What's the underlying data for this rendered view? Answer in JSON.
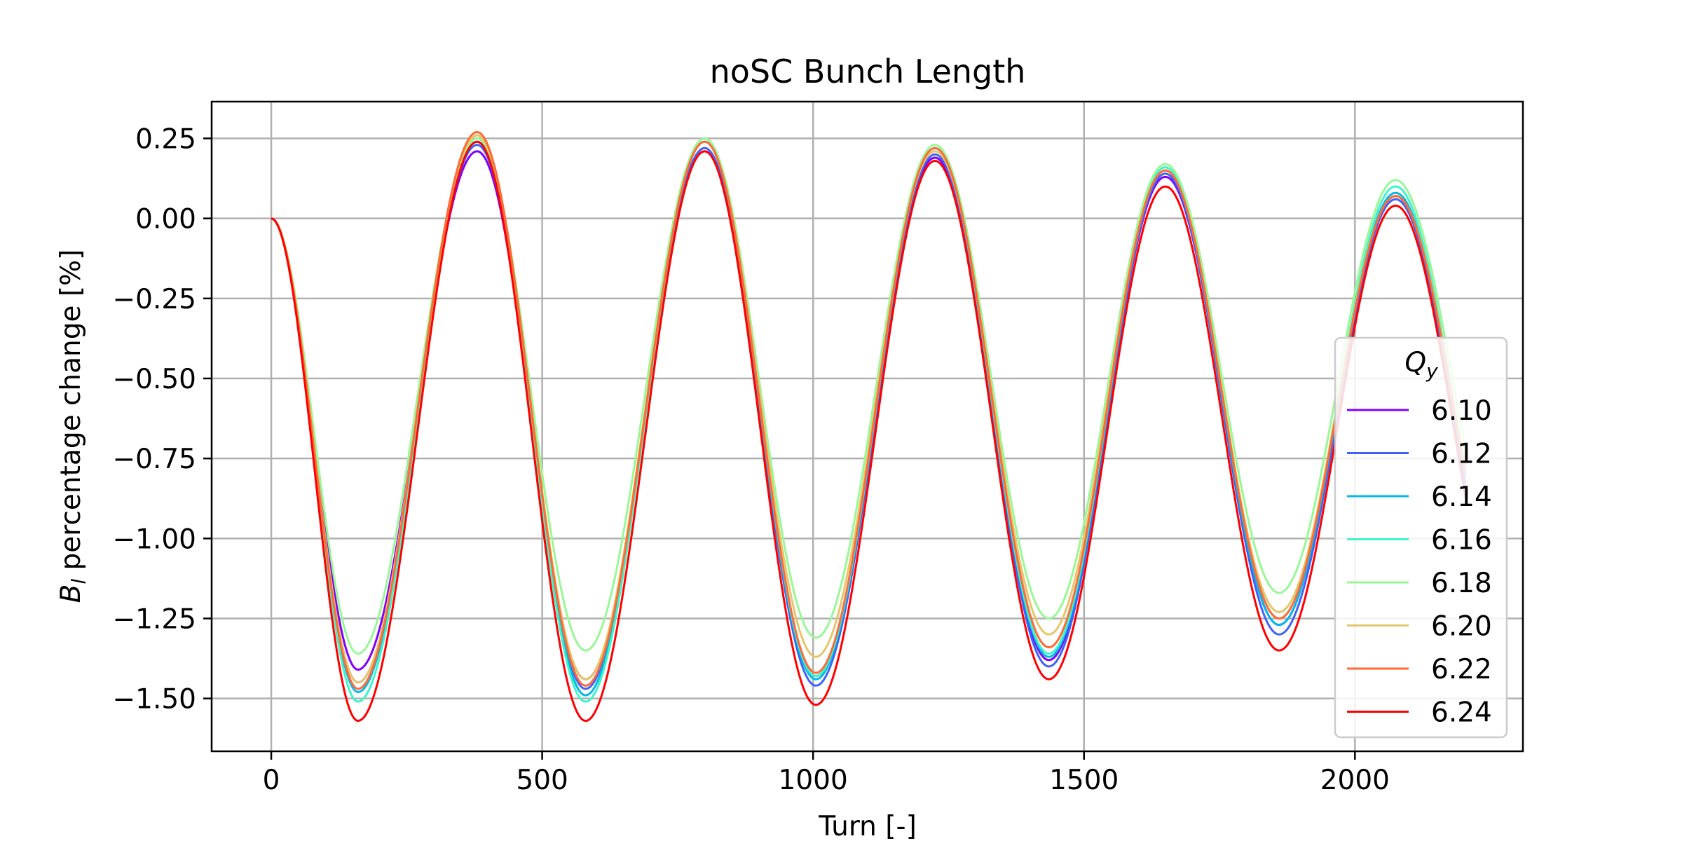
{
  "chart_data": {
    "type": "line",
    "title": "noSC Bunch Length",
    "xlabel": "Turn [-]",
    "ylabel": {
      "symbol": "B",
      "subscript": "l",
      "rest": " percentage change [%]"
    },
    "xlim": [
      -110,
      2310
    ],
    "ylim": [
      -1.665,
      0.365
    ],
    "x_ticks": [
      0,
      500,
      1000,
      1500,
      2000
    ],
    "x_tick_labels": [
      "0",
      "500",
      "1000",
      "1500",
      "2000"
    ],
    "y_ticks": [
      0.25,
      0.0,
      -0.25,
      -0.5,
      -0.75,
      -1.0,
      -1.25,
      -1.5
    ],
    "y_tick_labels": [
      "0.25",
      "0.00",
      "−0.25",
      "−0.50",
      "−0.75",
      "−1.00",
      "−1.25",
      "−1.50"
    ],
    "grid": true,
    "legend": {
      "title_symbol": "Q",
      "title_subscript": "y",
      "placement": "right"
    },
    "x_peaks": [
      0,
      160,
      380,
      580,
      800,
      1005,
      1225,
      1435,
      1650,
      1860,
      2075
    ],
    "x_end": 2205,
    "series": [
      {
        "name": "6.10",
        "color": "#7f00ff",
        "values": [
          0,
          -1.41,
          0.21,
          -1.44,
          0.21,
          -1.43,
          0.19,
          -1.38,
          0.13,
          -1.27,
          0.07
        ]
      },
      {
        "name": "6.12",
        "color": "#3f62f9",
        "values": [
          0,
          -1.45,
          0.23,
          -1.47,
          0.22,
          -1.46,
          0.2,
          -1.4,
          0.14,
          -1.3,
          0.06
        ]
      },
      {
        "name": "6.14",
        "color": "#03b9e6",
        "values": [
          0,
          -1.48,
          0.24,
          -1.49,
          0.24,
          -1.44,
          0.22,
          -1.37,
          0.15,
          -1.27,
          0.08
        ]
      },
      {
        "name": "6.16",
        "color": "#41f3cb",
        "values": [
          0,
          -1.51,
          0.24,
          -1.51,
          0.25,
          -1.43,
          0.22,
          -1.36,
          0.16,
          -1.25,
          0.1
        ]
      },
      {
        "name": "6.18",
        "color": "#99f896",
        "values": [
          0,
          -1.36,
          0.25,
          -1.35,
          0.25,
          -1.31,
          0.23,
          -1.25,
          0.17,
          -1.17,
          0.12
        ]
      },
      {
        "name": "6.20",
        "color": "#e4c66c",
        "values": [
          0,
          -1.45,
          0.26,
          -1.44,
          0.24,
          -1.37,
          0.21,
          -1.3,
          0.15,
          -1.23,
          0.07
        ]
      },
      {
        "name": "6.22",
        "color": "#ff6a36",
        "values": [
          0,
          -1.47,
          0.27,
          -1.46,
          0.24,
          -1.42,
          0.22,
          -1.34,
          0.15,
          -1.25,
          0.07
        ]
      },
      {
        "name": "6.24",
        "color": "#ff0000",
        "values": [
          0,
          -1.57,
          0.24,
          -1.57,
          0.21,
          -1.52,
          0.18,
          -1.44,
          0.1,
          -1.35,
          0.04
        ]
      }
    ]
  }
}
